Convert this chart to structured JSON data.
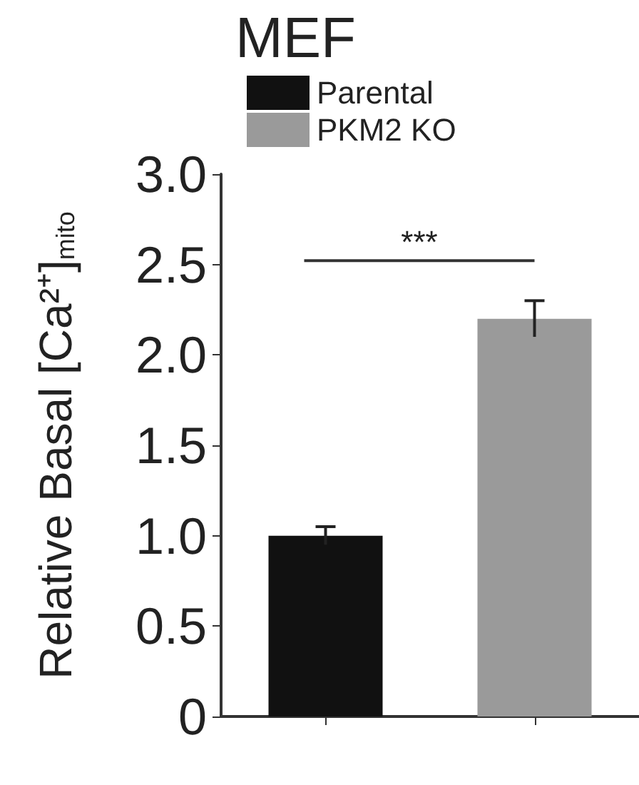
{
  "chart_data": {
    "type": "bar",
    "title": "MEF",
    "ylabel": "Relative Basal [Ca²⁺]$_{mito}$",
    "categories": [
      null,
      null
    ],
    "series": [
      {
        "name": "Parental",
        "color": "#111111",
        "values": [
          1.0,
          null
        ],
        "errors": [
          0.05,
          null
        ]
      },
      {
        "name": "PKM2 KO",
        "color": "#9a9a9a",
        "values": [
          null,
          2.2
        ],
        "errors": [
          null,
          0.1
        ]
      }
    ],
    "ylim": [
      0,
      3
    ],
    "yticks": [
      0,
      0.5,
      {
        "value": 1,
        "label": "1.0"
      },
      1.5,
      {
        "value": 2,
        "label": "2.0"
      },
      2.5,
      {
        "value": 3,
        "label": "3.0"
      }
    ],
    "annotations": [
      "***"
    ],
    "legend": "top left",
    "grid": false
  }
}
